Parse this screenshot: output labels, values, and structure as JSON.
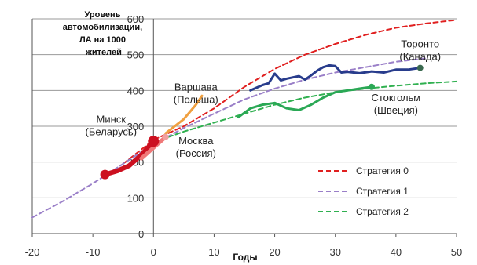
{
  "chart_data": {
    "type": "line",
    "ylabel_lines": [
      "Уровень",
      "автомобилизации,",
      "ЛА на 1000",
      "жителей"
    ],
    "xlabel": "Годы",
    "xlim": [
      -20,
      50
    ],
    "ylim": [
      0,
      600
    ],
    "x_ticks": [
      -20,
      -10,
      0,
      10,
      20,
      30,
      40,
      50
    ],
    "y_ticks": [
      0,
      100,
      200,
      300,
      400,
      500,
      600
    ],
    "grid": "horizontal",
    "legend_position": "bottom-right",
    "series": [
      {
        "name": "Стратегия 0",
        "color": "#e02020",
        "dashed": true,
        "x": [
          -5,
          -2,
          0,
          5,
          10,
          15,
          20,
          25,
          30,
          35,
          40,
          45,
          50
        ],
        "y": [
          195,
          235,
          262,
          300,
          350,
          410,
          460,
          500,
          530,
          555,
          575,
          587,
          597
        ]
      },
      {
        "name": "Стратегия 1",
        "color": "#9a7fc8",
        "dashed": true,
        "x": [
          -20,
          -15,
          -10,
          -5,
          0,
          5,
          10,
          15,
          20,
          25,
          30,
          35,
          40,
          45
        ],
        "y": [
          45,
          90,
          140,
          195,
          250,
          295,
          335,
          375,
          405,
          430,
          450,
          465,
          480,
          490
        ]
      },
      {
        "name": "Стратегия 2",
        "color": "#30b050",
        "dashed": true,
        "x": [
          0,
          5,
          10,
          15,
          20,
          25,
          30,
          35,
          40,
          45,
          50
        ],
        "y": [
          255,
          285,
          310,
          335,
          360,
          380,
          395,
          405,
          413,
          420,
          425
        ]
      },
      {
        "name": "Минск (Беларусь)",
        "color": "#cc1020",
        "dashed": false,
        "width": 6,
        "x": [
          -8,
          -6,
          -4,
          -2,
          0
        ],
        "y": [
          165,
          175,
          190,
          220,
          258
        ]
      },
      {
        "name": "Москва (Россия)",
        "color": "#f07878",
        "dashed": false,
        "width": 5,
        "x": [
          -2,
          0,
          2
        ],
        "y": [
          210,
          240,
          270
        ]
      },
      {
        "name": "Варшава (Польша)",
        "color": "#f0a040",
        "dashed": false,
        "width": 3,
        "x": [
          2,
          5,
          7,
          8
        ],
        "y": [
          280,
          320,
          360,
          385
        ]
      },
      {
        "name": "Торонто (Канада)",
        "color": "#283c8c",
        "dashed": false,
        "width": 3,
        "x": [
          16,
          18,
          19,
          20,
          21,
          22,
          24,
          25,
          26,
          27,
          28,
          29,
          30,
          31,
          32,
          34,
          36,
          38,
          40,
          42,
          44
        ],
        "y": [
          400,
          415,
          420,
          447,
          428,
          433,
          440,
          430,
          442,
          455,
          465,
          470,
          468,
          450,
          452,
          448,
          453,
          450,
          458,
          458,
          463
        ]
      },
      {
        "name": "Стокгольм (Швеция)",
        "color": "#2aa855",
        "dashed": false,
        "width": 3,
        "x": [
          14,
          16,
          18,
          20,
          22,
          24,
          26,
          28,
          30,
          32,
          34,
          36
        ],
        "y": [
          325,
          350,
          360,
          365,
          350,
          345,
          360,
          380,
          395,
          400,
          405,
          410
        ]
      }
    ],
    "markers": [
      {
        "x": -8,
        "y": 165,
        "color": "#cc1020",
        "size": 6
      },
      {
        "x": 0,
        "y": 258,
        "color": "#cc1020",
        "size": 7
      },
      {
        "x": 2,
        "y": 270,
        "color": "#f0a0a0",
        "size": 4
      },
      {
        "x": 36,
        "y": 410,
        "color": "#2aa855",
        "size": 4
      },
      {
        "x": 44,
        "y": 463,
        "color": "#3a6a50",
        "size": 4
      }
    ],
    "annotations": [
      {
        "lines": [
          "Минск",
          "(Беларусь)"
        ],
        "x": -7,
        "y": 310
      },
      {
        "lines": [
          "Москва",
          "(Россия)"
        ],
        "x": 7,
        "y": 250
      },
      {
        "lines": [
          "Варшава",
          "(Польша)"
        ],
        "x": 7,
        "y": 400
      },
      {
        "lines": [
          "Торонто",
          "(Канада)"
        ],
        "x": 44,
        "y": 520
      },
      {
        "lines": [
          "Стокгольм",
          "(Швеция)"
        ],
        "x": 40,
        "y": 370
      }
    ],
    "legend": [
      "Стратегия 0",
      "Стратегия 1",
      "Стратегия 2"
    ]
  }
}
